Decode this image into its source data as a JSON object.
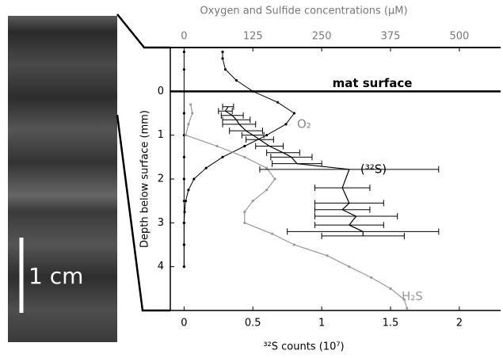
{
  "photo_scale": "1 cm",
  "chart_data": {
    "type": "line",
    "x_label": "³²S counts (10⁷)",
    "x2_label": "Oxygen and Sulfide concentrations (µM)",
    "y_label": "Depth below surface (mm)",
    "annotation": "mat surface",
    "xlim": [
      -0.1,
      2.3
    ],
    "xticks": [
      0,
      0.5,
      1,
      1.5,
      2
    ],
    "x2lim": [
      -25,
      575
    ],
    "x2ticks": [
      0,
      125,
      250,
      375,
      500
    ],
    "ylim": [
      -1,
      5
    ],
    "y_inverted": true,
    "yticks": [
      0,
      1,
      2,
      3,
      4
    ],
    "series": [
      {
        "name": "O₂",
        "color": "#000000",
        "axis": "x2",
        "style": "dotted",
        "depth": [
          -0.9,
          -0.75,
          -0.5,
          -0.25,
          0,
          0.25,
          0.5,
          0.75,
          1.0,
          1.25,
          1.5,
          1.75,
          2.0,
          2.25,
          2.5,
          2.75,
          3.0,
          3.5,
          4.0
        ],
        "values": [
          70,
          70,
          75,
          95,
          125,
          170,
          200,
          185,
          150,
          110,
          70,
          40,
          18,
          8,
          3,
          1,
          0,
          0,
          0
        ]
      },
      {
        "color": "#000000",
        "axis": "x2",
        "style": "dotted",
        "depth": [
          -0.9,
          -0.5,
          0,
          0.5,
          1.0,
          1.5,
          2.0,
          2.5,
          3.0,
          3.5,
          4.0
        ],
        "values": [
          0,
          0,
          0,
          0,
          0,
          0,
          0,
          0,
          0,
          0,
          0
        ]
      },
      {
        "name": "H₂S",
        "color": "#999999",
        "axis": "x2",
        "style": "line",
        "depth": [
          0.3,
          0.5,
          0.75,
          1.0,
          1.25,
          1.5,
          1.75,
          2.0,
          2.25,
          2.5,
          2.75,
          3.0,
          3.25,
          3.5,
          3.75,
          4.0,
          4.25,
          4.5,
          4.75,
          4.95
        ],
        "values": [
          12,
          15,
          8,
          3,
          60,
          110,
          150,
          165,
          150,
          125,
          110,
          110,
          160,
          200,
          260,
          300,
          340,
          375,
          400,
          405
        ]
      },
      {
        "name": "(³²S)",
        "color": "#000000",
        "axis": "x",
        "style": "errorbar",
        "depth": [
          0.35,
          0.45,
          0.55,
          0.65,
          0.75,
          0.9,
          1.0,
          1.1,
          1.25,
          1.4,
          1.5,
          1.65,
          1.78,
          2.2,
          2.55,
          2.7,
          2.85,
          3.05,
          3.2,
          3.3
        ],
        "values": [
          0.32,
          0.3,
          0.35,
          0.38,
          0.4,
          0.45,
          0.5,
          0.55,
          0.62,
          0.72,
          0.78,
          0.82,
          1.2,
          1.15,
          1.2,
          1.15,
          1.25,
          1.2,
          1.3,
          1.3
        ],
        "errors": [
          0.04,
          0.05,
          0.08,
          0.1,
          0.12,
          0.12,
          0.08,
          0.1,
          0.1,
          0.12,
          0.15,
          0.18,
          0.65,
          0.2,
          0.25,
          0.2,
          0.3,
          0.25,
          0.55,
          0.3
        ]
      }
    ]
  }
}
